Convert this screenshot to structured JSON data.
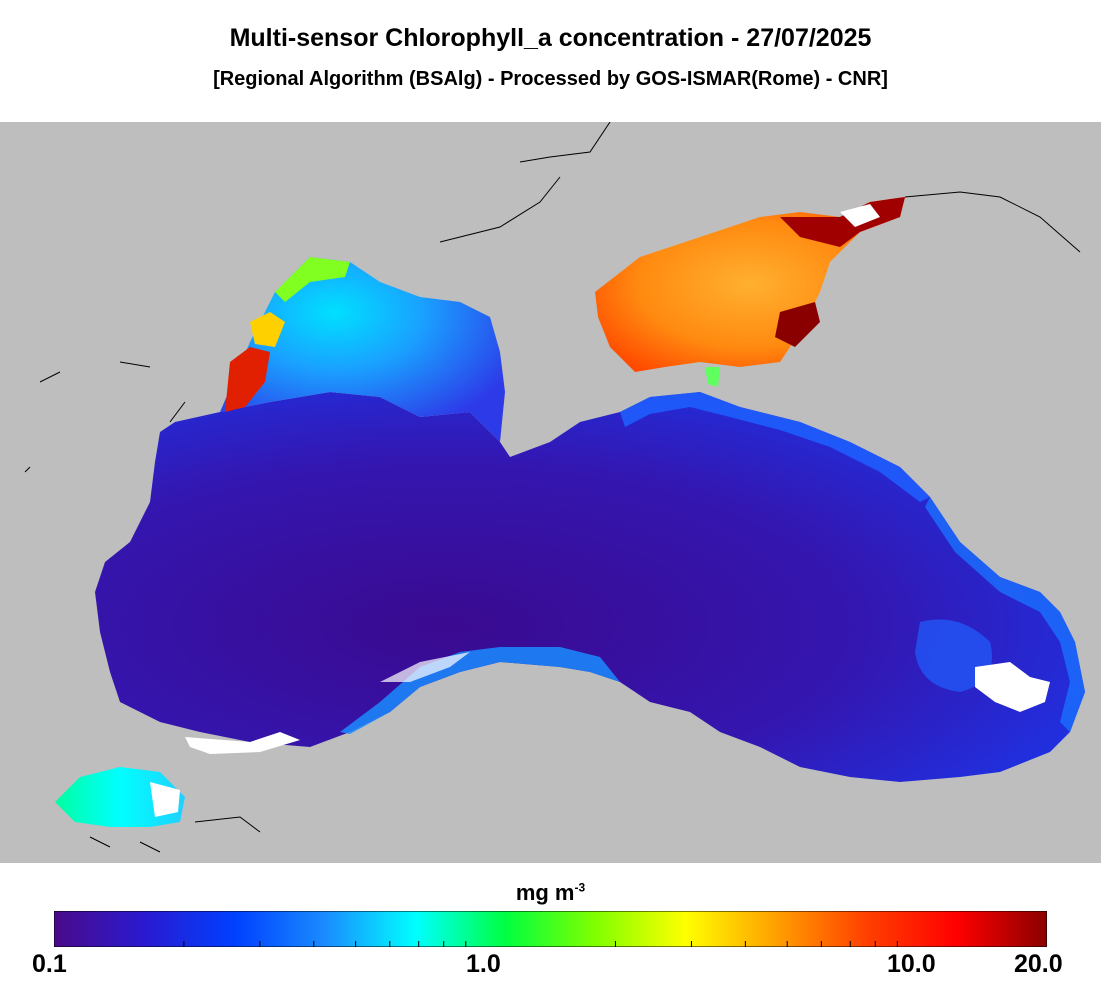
{
  "header": {
    "title": "Multi-sensor Chlorophyll_a concentration - 27/07/2025",
    "subtitle": "[Regional Algorithm (BSAlg) - Processed by GOS-ISMAR(Rome) - CNR]"
  },
  "legend": {
    "units_base": "mg m",
    "units_exp": "-3",
    "ticks": [
      "0.1",
      "1.0",
      "10.0",
      "20.0"
    ],
    "colors": [
      "#4a0a8a",
      "#2a1ad0",
      "#0040ff",
      "#1a8cff",
      "#00ffff",
      "#00ff40",
      "#80ff00",
      "#ffff00",
      "#ffa000",
      "#ff4000",
      "#ff0000",
      "#8a0000"
    ]
  },
  "map": {
    "land_color": "#bebebe",
    "sea_low_color": "#3d0d98",
    "sea_mid_color": "#1f2ee0",
    "coastal_color": "#1a9cff",
    "azov_color": "#ff9a20"
  }
}
